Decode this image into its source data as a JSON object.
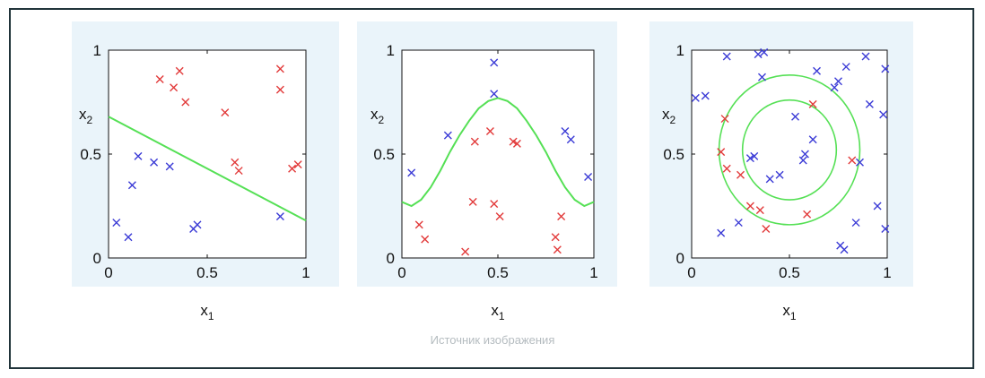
{
  "caption": "Источник изображения",
  "colors": {
    "class_a": "#e23a3a",
    "class_b": "#3b3bd6",
    "boundary": "#55e055",
    "frame": "#21343a"
  },
  "chart_data": [
    {
      "type": "scatter",
      "title": "",
      "xlabel": "x1",
      "ylabel": "x2",
      "xlim": [
        0,
        1
      ],
      "ylim": [
        0,
        1
      ],
      "xticks": [
        "0",
        "0.5",
        "1"
      ],
      "yticks": [
        "0",
        "0.5",
        "1"
      ],
      "boundary": {
        "kind": "line",
        "points": [
          [
            0,
            0.68
          ],
          [
            1,
            0.18
          ]
        ]
      },
      "series": [
        {
          "marker": "x",
          "color": "#e23a3a",
          "points": [
            [
              0.26,
              0.86
            ],
            [
              0.33,
              0.82
            ],
            [
              0.36,
              0.9
            ],
            [
              0.39,
              0.75
            ],
            [
              0.59,
              0.7
            ],
            [
              0.64,
              0.46
            ],
            [
              0.66,
              0.42
            ],
            [
              0.87,
              0.91
            ],
            [
              0.87,
              0.81
            ],
            [
              0.93,
              0.43
            ],
            [
              0.96,
              0.45
            ]
          ]
        },
        {
          "marker": "x",
          "color": "#3b3bd6",
          "points": [
            [
              0.04,
              0.17
            ],
            [
              0.1,
              0.1
            ],
            [
              0.12,
              0.35
            ],
            [
              0.15,
              0.49
            ],
            [
              0.23,
              0.46
            ],
            [
              0.31,
              0.44
            ],
            [
              0.43,
              0.14
            ],
            [
              0.45,
              0.16
            ],
            [
              0.87,
              0.2
            ]
          ]
        }
      ]
    },
    {
      "type": "scatter",
      "title": "",
      "xlabel": "x1",
      "ylabel": "x2",
      "xlim": [
        0,
        1
      ],
      "ylim": [
        0,
        1
      ],
      "xticks": [
        "0",
        "0.5",
        "1"
      ],
      "yticks": [
        "0",
        "0.5",
        "1"
      ],
      "boundary": {
        "kind": "curve",
        "points": [
          [
            0,
            0.27
          ],
          [
            0.05,
            0.25
          ],
          [
            0.1,
            0.28
          ],
          [
            0.15,
            0.34
          ],
          [
            0.2,
            0.42
          ],
          [
            0.25,
            0.51
          ],
          [
            0.3,
            0.59
          ],
          [
            0.35,
            0.66
          ],
          [
            0.4,
            0.72
          ],
          [
            0.45,
            0.755
          ],
          [
            0.5,
            0.77
          ],
          [
            0.55,
            0.755
          ],
          [
            0.6,
            0.72
          ],
          [
            0.65,
            0.66
          ],
          [
            0.7,
            0.59
          ],
          [
            0.75,
            0.51
          ],
          [
            0.8,
            0.42
          ],
          [
            0.85,
            0.34
          ],
          [
            0.9,
            0.28
          ],
          [
            0.95,
            0.25
          ],
          [
            1,
            0.27
          ]
        ]
      },
      "series": [
        {
          "marker": "x",
          "color": "#e23a3a",
          "points": [
            [
              0.09,
              0.16
            ],
            [
              0.12,
              0.09
            ],
            [
              0.33,
              0.03
            ],
            [
              0.37,
              0.27
            ],
            [
              0.38,
              0.56
            ],
            [
              0.46,
              0.61
            ],
            [
              0.48,
              0.26
            ],
            [
              0.51,
              0.2
            ],
            [
              0.58,
              0.56
            ],
            [
              0.6,
              0.55
            ],
            [
              0.8,
              0.1
            ],
            [
              0.81,
              0.04
            ],
            [
              0.83,
              0.2
            ]
          ]
        },
        {
          "marker": "x",
          "color": "#3b3bd6",
          "points": [
            [
              0.05,
              0.41
            ],
            [
              0.24,
              0.59
            ],
            [
              0.48,
              0.94
            ],
            [
              0.48,
              0.79
            ],
            [
              0.85,
              0.61
            ],
            [
              0.88,
              0.57
            ],
            [
              0.97,
              0.39
            ]
          ]
        }
      ]
    },
    {
      "type": "scatter",
      "title": "",
      "xlabel": "x1",
      "ylabel": "x2",
      "xlim": [
        0,
        1
      ],
      "ylim": [
        0,
        1
      ],
      "xticks": [
        "0",
        "0.5",
        "1"
      ],
      "yticks": [
        "0",
        "0.5",
        "1"
      ],
      "boundary": {
        "kind": "circles",
        "center": [
          0.5,
          0.52
        ],
        "radii": [
          0.24,
          0.36
        ]
      },
      "series": [
        {
          "marker": "x",
          "color": "#e23a3a",
          "points": [
            [
              0.15,
              0.51
            ],
            [
              0.17,
              0.67
            ],
            [
              0.18,
              0.43
            ],
            [
              0.25,
              0.4
            ],
            [
              0.3,
              0.25
            ],
            [
              0.35,
              0.23
            ],
            [
              0.38,
              0.14
            ],
            [
              0.59,
              0.21
            ],
            [
              0.62,
              0.74
            ],
            [
              0.82,
              0.47
            ]
          ]
        },
        {
          "marker": "x",
          "color": "#3b3bd6",
          "points": [
            [
              0.02,
              0.77
            ],
            [
              0.07,
              0.78
            ],
            [
              0.15,
              0.12
            ],
            [
              0.18,
              0.97
            ],
            [
              0.24,
              0.17
            ],
            [
              0.3,
              0.48
            ],
            [
              0.32,
              0.49
            ],
            [
              0.34,
              0.98
            ],
            [
              0.36,
              0.87
            ],
            [
              0.37,
              0.99
            ],
            [
              0.4,
              0.38
            ],
            [
              0.45,
              0.4
            ],
            [
              0.53,
              0.68
            ],
            [
              0.57,
              0.47
            ],
            [
              0.58,
              0.5
            ],
            [
              0.62,
              0.57
            ],
            [
              0.64,
              0.9
            ],
            [
              0.73,
              0.82
            ],
            [
              0.75,
              0.85
            ],
            [
              0.76,
              0.06
            ],
            [
              0.78,
              0.04
            ],
            [
              0.79,
              0.92
            ],
            [
              0.84,
              0.17
            ],
            [
              0.86,
              0.46
            ],
            [
              0.89,
              0.97
            ],
            [
              0.91,
              0.74
            ],
            [
              0.95,
              0.25
            ],
            [
              0.98,
              0.69
            ],
            [
              0.99,
              0.91
            ],
            [
              0.99,
              0.14
            ]
          ]
        }
      ]
    }
  ]
}
